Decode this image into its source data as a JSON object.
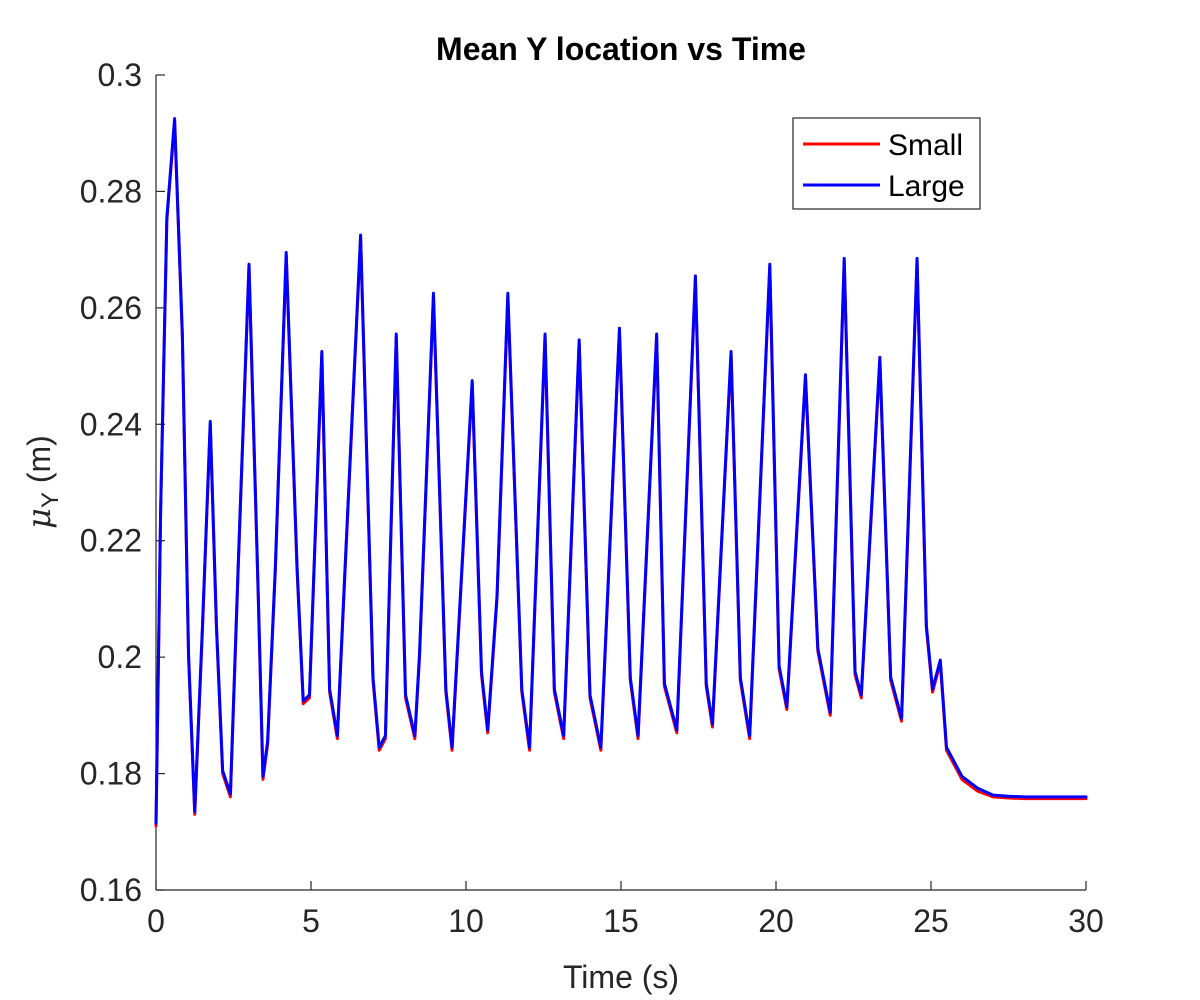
{
  "chart_data": {
    "type": "line",
    "title": "Mean Y location vs Time",
    "xlabel": "Time (s)",
    "ylabel_main": "μ",
    "ylabel_sub": "Y",
    "ylabel_unit": " (m)",
    "xlim": [
      0,
      30
    ],
    "ylim": [
      0.16,
      0.3
    ],
    "xticks": [
      0,
      5,
      10,
      15,
      20,
      25,
      30
    ],
    "yticks": [
      0.16,
      0.18,
      0.2,
      0.22,
      0.24,
      0.26,
      0.28,
      0.3
    ],
    "xtick_labels": [
      "0",
      "5",
      "10",
      "15",
      "20",
      "25",
      "30"
    ],
    "ytick_labels": [
      "0.16",
      "0.18",
      "0.2",
      "0.22",
      "0.24",
      "0.26",
      "0.28",
      "0.3"
    ],
    "grid": false,
    "legend_position": "top-right",
    "colors": {
      "Small": "#ff0000",
      "Large": "#0000ff"
    },
    "series": [
      {
        "name": "Small",
        "x": [
          0,
          0.15,
          0.35,
          0.6,
          0.85,
          1.05,
          1.25,
          1.5,
          1.75,
          1.95,
          2.15,
          2.4,
          2.65,
          3.0,
          3.3,
          3.45,
          3.6,
          3.85,
          4.2,
          4.55,
          4.75,
          4.95,
          5.35,
          5.6,
          5.85,
          6.1,
          6.6,
          7.0,
          7.2,
          7.4,
          7.75,
          8.05,
          8.35,
          8.5,
          8.95,
          9.35,
          9.55,
          10.2,
          10.5,
          10.7,
          11.0,
          11.35,
          11.8,
          12.05,
          12.55,
          12.85,
          13.15,
          13.65,
          14.0,
          14.35,
          14.95,
          15.3,
          15.55,
          16.15,
          16.4,
          16.8,
          17.4,
          17.75,
          17.95,
          18.55,
          18.85,
          19.15,
          19.8,
          20.1,
          20.35,
          20.95,
          21.35,
          21.75,
          22.2,
          22.55,
          22.75,
          23.35,
          23.7,
          24.05,
          24.55,
          24.85,
          25.05,
          25.3,
          25.5,
          26.0,
          26.5,
          27.0,
          27.5,
          28.0,
          30.0
        ],
        "y": [
          0.171,
          0.225,
          0.275,
          0.292,
          0.255,
          0.2,
          0.173,
          0.205,
          0.24,
          0.205,
          0.18,
          0.176,
          0.215,
          0.267,
          0.21,
          0.179,
          0.185,
          0.215,
          0.269,
          0.215,
          0.192,
          0.193,
          0.252,
          0.194,
          0.186,
          0.215,
          0.272,
          0.196,
          0.184,
          0.186,
          0.255,
          0.193,
          0.186,
          0.2,
          0.262,
          0.194,
          0.184,
          0.247,
          0.197,
          0.187,
          0.21,
          0.262,
          0.194,
          0.184,
          0.255,
          0.194,
          0.186,
          0.254,
          0.193,
          0.184,
          0.256,
          0.196,
          0.186,
          0.255,
          0.195,
          0.187,
          0.265,
          0.195,
          0.188,
          0.252,
          0.196,
          0.186,
          0.267,
          0.198,
          0.191,
          0.248,
          0.201,
          0.19,
          0.268,
          0.197,
          0.193,
          0.251,
          0.196,
          0.189,
          0.268,
          0.205,
          0.194,
          0.199,
          0.184,
          0.179,
          0.177,
          0.176,
          0.1758,
          0.1757,
          0.1757
        ]
      },
      {
        "name": "Large",
        "x": [
          0,
          0.15,
          0.35,
          0.6,
          0.85,
          1.05,
          1.25,
          1.5,
          1.75,
          1.95,
          2.15,
          2.4,
          2.65,
          3.0,
          3.3,
          3.45,
          3.6,
          3.85,
          4.2,
          4.55,
          4.75,
          4.95,
          5.35,
          5.6,
          5.85,
          6.1,
          6.6,
          7.0,
          7.2,
          7.4,
          7.75,
          8.05,
          8.35,
          8.5,
          8.95,
          9.35,
          9.55,
          10.2,
          10.5,
          10.7,
          11.0,
          11.35,
          11.8,
          12.05,
          12.55,
          12.85,
          13.15,
          13.65,
          14.0,
          14.35,
          14.95,
          15.3,
          15.55,
          16.15,
          16.4,
          16.8,
          17.4,
          17.75,
          17.95,
          18.55,
          18.85,
          19.15,
          19.8,
          20.1,
          20.35,
          20.95,
          21.35,
          21.75,
          22.2,
          22.55,
          22.75,
          23.35,
          23.7,
          24.05,
          24.55,
          24.85,
          25.05,
          25.3,
          25.5,
          26.0,
          26.5,
          27.0,
          27.5,
          28.0,
          30.0
        ],
        "y": [
          0.1715,
          0.2255,
          0.2755,
          0.2925,
          0.2555,
          0.2005,
          0.1735,
          0.2055,
          0.2405,
          0.2055,
          0.1805,
          0.1765,
          0.2155,
          0.2675,
          0.2105,
          0.1795,
          0.1855,
          0.2155,
          0.2695,
          0.2155,
          0.1925,
          0.1935,
          0.2525,
          0.1945,
          0.1865,
          0.2155,
          0.2725,
          0.1965,
          0.1845,
          0.1865,
          0.2555,
          0.1935,
          0.1865,
          0.2005,
          0.2625,
          0.1945,
          0.1845,
          0.2475,
          0.1975,
          0.1875,
          0.2105,
          0.2625,
          0.1945,
          0.1845,
          0.2555,
          0.1945,
          0.1865,
          0.2545,
          0.1935,
          0.1845,
          0.2565,
          0.1965,
          0.1865,
          0.2555,
          0.1955,
          0.1875,
          0.2655,
          0.1955,
          0.1885,
          0.2525,
          0.1965,
          0.1865,
          0.2675,
          0.1985,
          0.1915,
          0.2485,
          0.2015,
          0.1905,
          0.2685,
          0.1975,
          0.1935,
          0.2515,
          0.1965,
          0.1895,
          0.2685,
          0.2055,
          0.1945,
          0.1995,
          0.1845,
          0.1795,
          0.1775,
          0.1763,
          0.1761,
          0.176,
          0.176
        ]
      }
    ]
  }
}
